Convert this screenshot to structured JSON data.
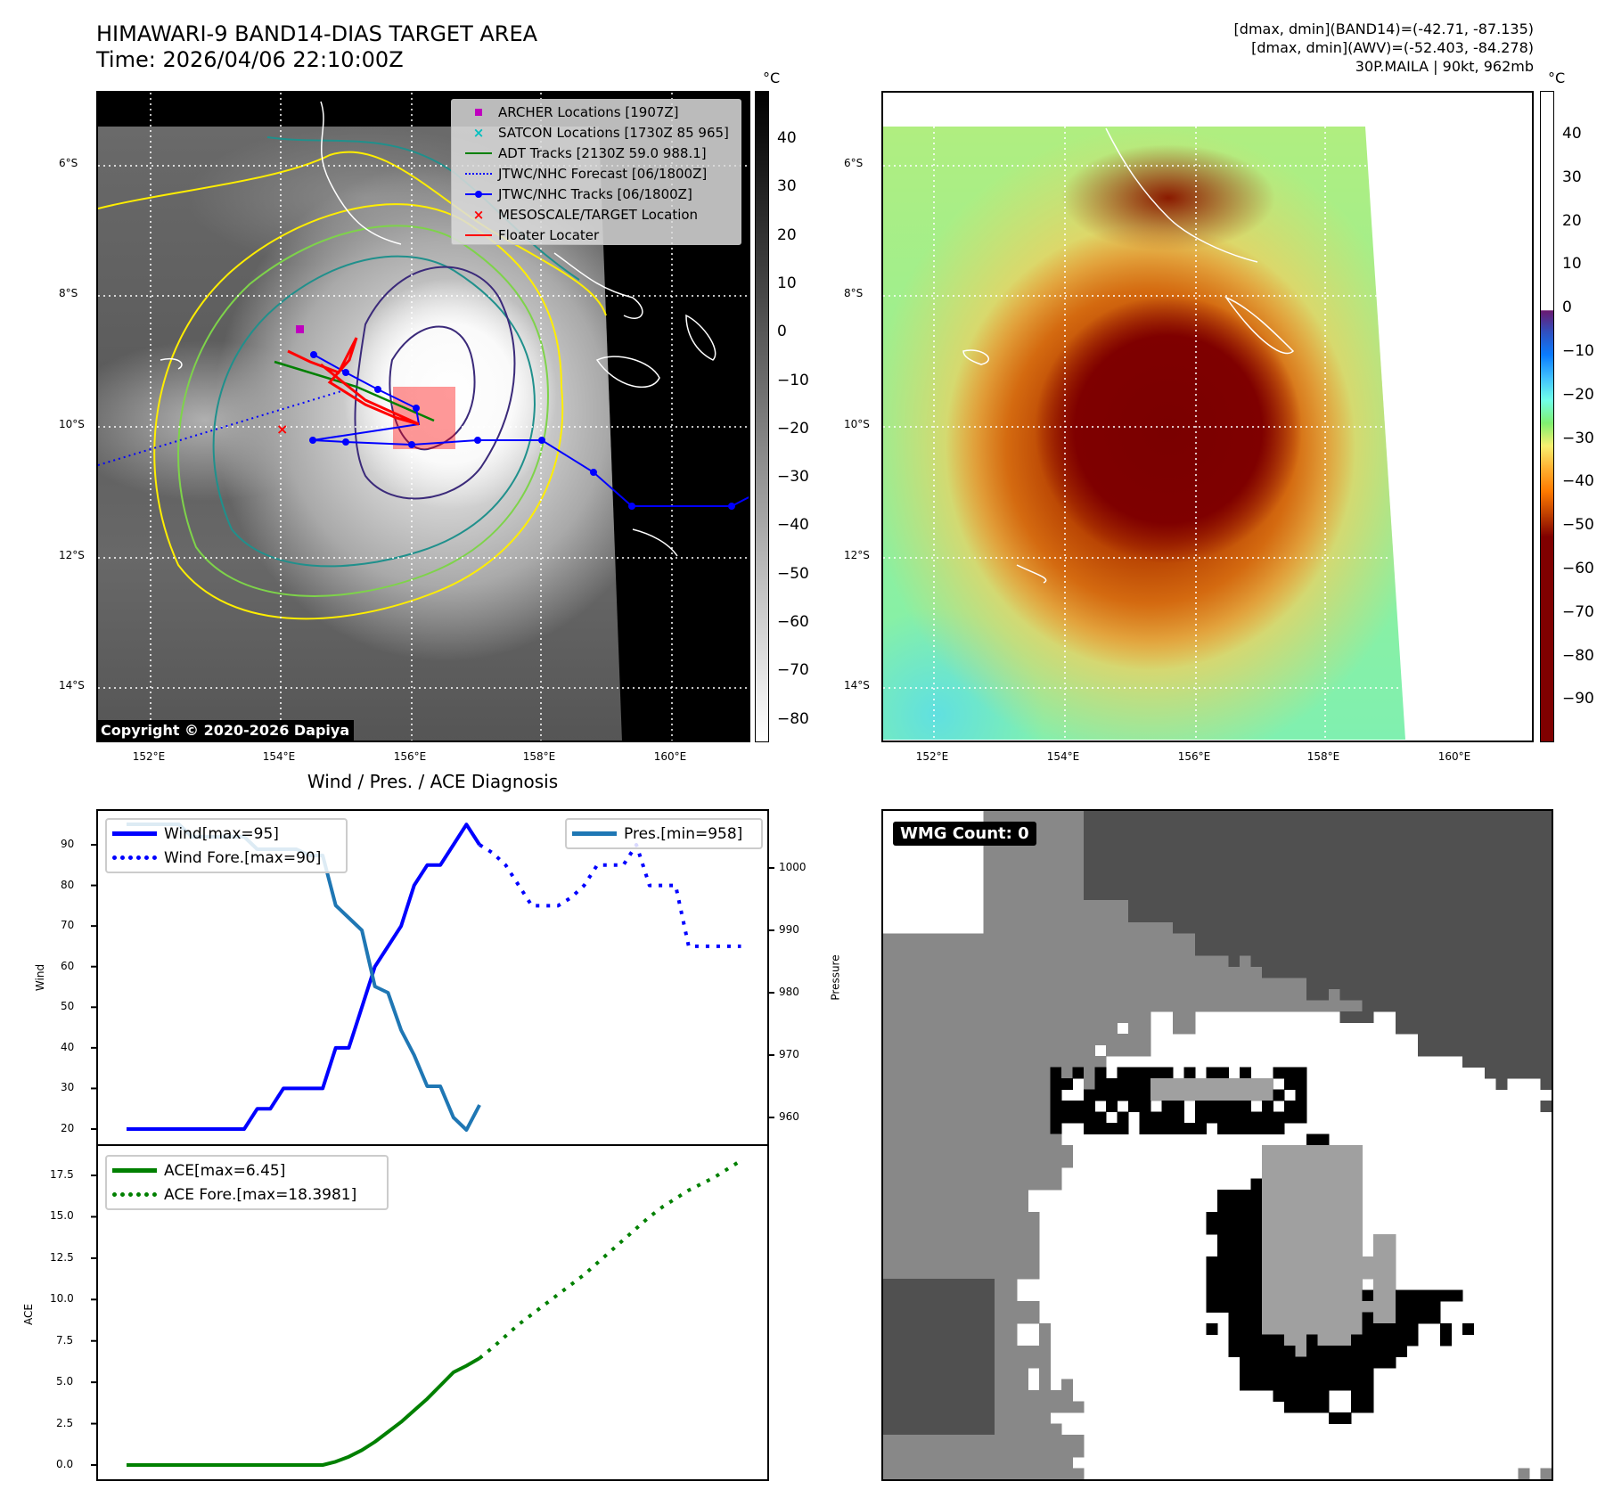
{
  "header": {
    "title": "HIMAWARI-9 BAND14-DIAS TARGET AREA",
    "time": "Time: 2026/04/06 22:10:00Z",
    "stats": [
      "[dmax, dmin](BAND14)=(-42.71, -87.135)",
      "[dmax, dmin](AWV)=(-52.403, -84.278)",
      "30P.MAILA | 90kt, 962mb"
    ]
  },
  "map1": {
    "unit": "°C",
    "colorbar_ticks": [
      "40",
      "30",
      "20",
      "10",
      "0",
      "−10",
      "−20",
      "−30",
      "−40",
      "−50",
      "−60",
      "−70",
      "−80"
    ],
    "lat_ticks": [
      "6°S",
      "8°S",
      "10°S",
      "12°S",
      "14°S"
    ],
    "lon_ticks": [
      "152°E",
      "154°E",
      "156°E",
      "158°E",
      "160°E"
    ],
    "legend": [
      {
        "label": "ARCHER Locations [1907Z]",
        "icon": "square-marker",
        "color": "#bf00bf"
      },
      {
        "label": "SATCON Locations [1730Z 85 965]",
        "icon": "x-marker",
        "color": "#00bfbf"
      },
      {
        "label": "ADT Tracks [2130Z 59.0 988.1]",
        "icon": "line",
        "color": "#008000"
      },
      {
        "label": "JTWC/NHC Forecast [06/1800Z]",
        "icon": "dotted-line",
        "color": "#0000ff"
      },
      {
        "label": "JTWC/NHC Tracks [06/1800Z]",
        "icon": "line-dot",
        "color": "#0000ff"
      },
      {
        "label": "MESOSCALE/TARGET Location",
        "icon": "x-marker",
        "color": "#ff0000"
      },
      {
        "label": "Floater Locater",
        "icon": "line",
        "color": "#ff0000"
      }
    ],
    "copyright": "Copyright © 2020-2026 Dapiya"
  },
  "map2": {
    "unit": "°C",
    "colorbar_ticks": [
      "40",
      "30",
      "20",
      "10",
      "0",
      "−10",
      "−20",
      "−30",
      "−40",
      "−50",
      "−60",
      "−70",
      "−80",
      "−90"
    ],
    "lat_ticks": [
      "6°S",
      "8°S",
      "10°S",
      "12°S",
      "14°S"
    ],
    "lon_ticks": [
      "152°E",
      "154°E",
      "156°E",
      "158°E",
      "160°E"
    ]
  },
  "wmg": {
    "label": "WMG Count: 0"
  },
  "chart_data": [
    {
      "type": "line",
      "title": "Wind / Pres. / ACE Diagnosis",
      "ylabel": "Wind",
      "y2label": "Pressure",
      "ylim": [
        17,
        98
      ],
      "y2lim": [
        955,
        1008
      ],
      "yticks": [
        "20",
        "30",
        "40",
        "50",
        "60",
        "70",
        "80",
        "90"
      ],
      "y2ticks": [
        "960",
        "970",
        "980",
        "990",
        "1000"
      ],
      "series": [
        {
          "name": "Wind[max=95]",
          "axis": "left",
          "style": "solid",
          "color": "#0000ff",
          "x": [
            0,
            1,
            2,
            3,
            4,
            5,
            6,
            7,
            8,
            9,
            10,
            11,
            12,
            13,
            14,
            15,
            16,
            17,
            18,
            19,
            20,
            21,
            22,
            23,
            24,
            25,
            26,
            27
          ],
          "values": [
            20,
            20,
            20,
            20,
            20,
            20,
            20,
            20,
            20,
            20,
            25,
            25,
            30,
            30,
            30,
            30,
            40,
            40,
            50,
            60,
            65,
            70,
            80,
            85,
            85,
            90,
            95,
            90
          ]
        },
        {
          "name": "Wind Fore.[max=90]",
          "axis": "left",
          "style": "dotted",
          "color": "#0000ff",
          "x": [
            27,
            28,
            29,
            30,
            31,
            32,
            33,
            34,
            35,
            36,
            37,
            38,
            39,
            40,
            41,
            42,
            43,
            44,
            45,
            46,
            47
          ],
          "values": [
            90,
            88,
            85,
            80,
            75,
            75,
            75,
            77,
            80,
            85,
            85,
            85,
            90,
            80,
            80,
            80,
            65,
            65,
            65,
            65,
            65
          ]
        },
        {
          "name": "Pres.[min=958]",
          "axis": "right",
          "style": "solid",
          "color": "#1f77b4",
          "x": [
            0,
            1,
            2,
            3,
            4,
            5,
            6,
            7,
            8,
            9,
            10,
            11,
            12,
            13,
            14,
            15,
            16,
            17,
            18,
            19,
            20,
            21,
            22,
            23,
            24,
            25,
            26,
            27
          ],
          "values": [
            1007,
            1007,
            1007,
            1007,
            1007,
            1005,
            1005,
            1005,
            1005,
            1005,
            1003,
            1003,
            1003,
            1003,
            1002,
            1002,
            994,
            992,
            990,
            981,
            980,
            974,
            970,
            965,
            965,
            960,
            958,
            962
          ]
        }
      ]
    },
    {
      "type": "line",
      "ylabel": "ACE",
      "ylim": [
        -1.5,
        19.5
      ],
      "yticks": [
        "0.0",
        "2.5",
        "5.0",
        "7.5",
        "10.0",
        "12.5",
        "15.0",
        "17.5"
      ],
      "series": [
        {
          "name": "ACE[max=6.45]",
          "style": "solid",
          "color": "#008000",
          "x": [
            0,
            15,
            16,
            17,
            18,
            19,
            20,
            21,
            22,
            23,
            24,
            25,
            26,
            27
          ],
          "values": [
            0,
            0,
            0.2,
            0.5,
            0.9,
            1.4,
            2.0,
            2.6,
            3.3,
            4.0,
            4.8,
            5.6,
            6.0,
            6.45
          ]
        },
        {
          "name": "ACE Fore.[max=18.3981]",
          "style": "dotted",
          "color": "#008000",
          "x": [
            27,
            28,
            29,
            30,
            31,
            32,
            33,
            34,
            35,
            36,
            37,
            38,
            39,
            40,
            41,
            42,
            43,
            44,
            45,
            46,
            47
          ],
          "values": [
            6.45,
            7.1,
            7.8,
            8.5,
            9.1,
            9.7,
            10.3,
            10.9,
            11.5,
            12.2,
            12.9,
            13.6,
            14.3,
            15.0,
            15.6,
            16.1,
            16.6,
            17.0,
            17.4,
            17.9,
            18.4
          ]
        }
      ]
    }
  ]
}
